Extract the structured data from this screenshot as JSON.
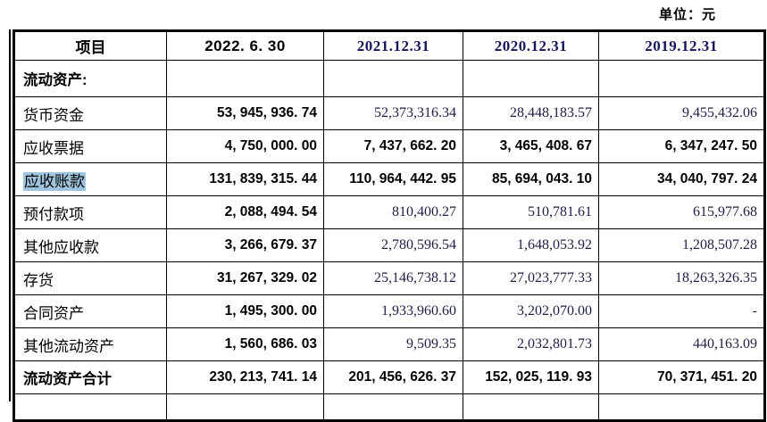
{
  "unit_label": "单位：元",
  "colors": {
    "highlight": "#9fc5de",
    "date_header_serif": "#15155c",
    "serif_number": "#1e1e46",
    "border": "#000000"
  },
  "table": {
    "header": {
      "item": "项目",
      "dates": [
        {
          "label": "2022. 6. 30"
        },
        {
          "label": "2021.12.31"
        },
        {
          "label": "2020.12.31"
        },
        {
          "label": "2019.12.31"
        }
      ]
    },
    "section_row": {
      "label": "流动资产:"
    },
    "rows": [
      {
        "label": "货币资金",
        "label_bold": false,
        "highlight": false,
        "cells": [
          {
            "text": "53, 945, 936. 74",
            "bold": true
          },
          {
            "text": "52,373,316.34",
            "bold": false
          },
          {
            "text": "28,448,183.57",
            "bold": false
          },
          {
            "text": "9,455,432.06",
            "bold": false
          }
        ]
      },
      {
        "label": "应收票据",
        "label_bold": false,
        "highlight": false,
        "cells": [
          {
            "text": "4, 750, 000. 00",
            "bold": true
          },
          {
            "text": "7, 437, 662. 20",
            "bold": true
          },
          {
            "text": "3, 465, 408. 67",
            "bold": true
          },
          {
            "text": "6, 347, 247. 50",
            "bold": true
          }
        ]
      },
      {
        "label": "应收账款",
        "label_bold": false,
        "highlight": true,
        "cells": [
          {
            "text": "131, 839, 315. 44",
            "bold": true
          },
          {
            "text": "110, 964, 442. 95",
            "bold": true
          },
          {
            "text": "85, 694, 043. 10",
            "bold": true
          },
          {
            "text": "34, 040, 797. 24",
            "bold": true
          }
        ]
      },
      {
        "label": "预付款项",
        "label_bold": false,
        "highlight": false,
        "cells": [
          {
            "text": "2, 088, 494. 54",
            "bold": true
          },
          {
            "text": "810,400.27",
            "bold": false
          },
          {
            "text": "510,781.61",
            "bold": false
          },
          {
            "text": "615,977.68",
            "bold": false
          }
        ]
      },
      {
        "label": "其他应收款",
        "label_bold": false,
        "highlight": false,
        "cells": [
          {
            "text": "3, 266, 679. 37",
            "bold": true
          },
          {
            "text": "2,780,596.54",
            "bold": false
          },
          {
            "text": "1,648,053.92",
            "bold": false
          },
          {
            "text": "1,208,507.28",
            "bold": false
          }
        ]
      },
      {
        "label": "存货",
        "label_bold": false,
        "highlight": false,
        "cells": [
          {
            "text": "31, 267, 329. 02",
            "bold": true
          },
          {
            "text": "25,146,738.12",
            "bold": false
          },
          {
            "text": "27,023,777.33",
            "bold": false
          },
          {
            "text": "18,263,326.35",
            "bold": false
          }
        ]
      },
      {
        "label": "合同资产",
        "label_bold": false,
        "highlight": false,
        "cells": [
          {
            "text": "1, 495, 300. 00",
            "bold": true
          },
          {
            "text": "1,933,960.60",
            "bold": false
          },
          {
            "text": "3,202,070.00",
            "bold": false
          },
          {
            "text": "-",
            "bold": false
          }
        ]
      },
      {
        "label": "其他流动资产",
        "label_bold": false,
        "highlight": false,
        "cells": [
          {
            "text": "1, 560, 686. 03",
            "bold": true
          },
          {
            "text": "9,509.35",
            "bold": false
          },
          {
            "text": "2,032,801.73",
            "bold": false
          },
          {
            "text": "440,163.09",
            "bold": false
          }
        ]
      },
      {
        "label": "流动资产合计",
        "label_bold": true,
        "highlight": false,
        "cells": [
          {
            "text": "230, 213, 741. 14",
            "bold": true
          },
          {
            "text": "201, 456, 626. 37",
            "bold": true
          },
          {
            "text": "152, 025, 119. 93",
            "bold": true
          },
          {
            "text": "70, 371, 451. 20",
            "bold": true
          }
        ]
      }
    ]
  }
}
